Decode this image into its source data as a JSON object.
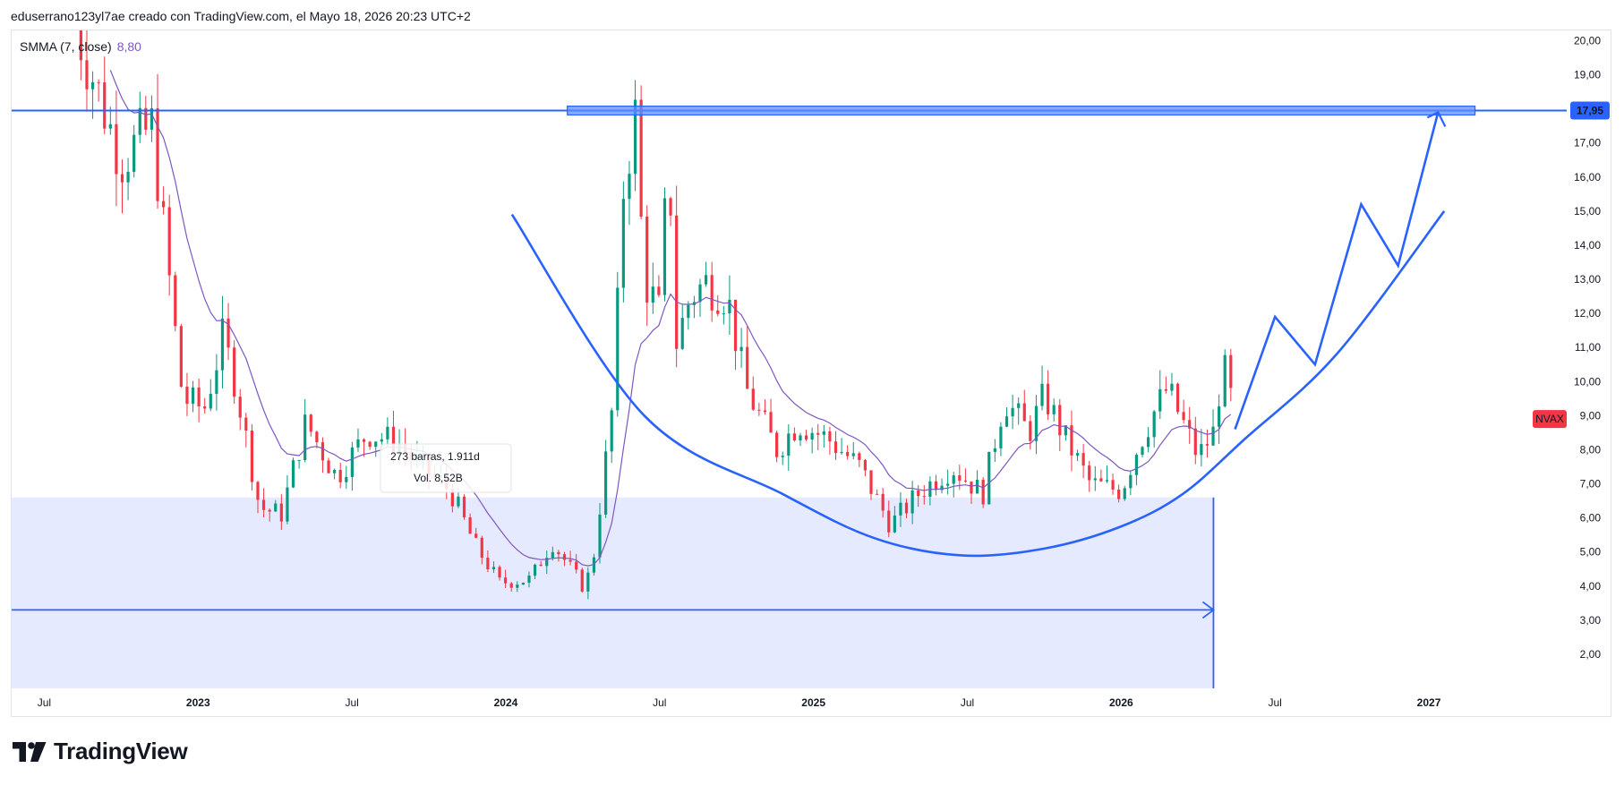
{
  "header": {
    "caption": "eduserrano123yl7ae creado con TradingView.com, el Mayo 18, 2026 20:23 UTC+2"
  },
  "indicator": {
    "name": "SMMA (7, close)",
    "value": "8,80"
  },
  "branding": {
    "logo_text": "TradingView"
  },
  "chart_data": {
    "type": "candlestick",
    "symbol": "NVAX",
    "price_axis": {
      "ticks": [
        "2,00",
        "3,00",
        "4,00",
        "5,00",
        "6,00",
        "7,00",
        "8,00",
        "9,00",
        "10,00",
        "11,00",
        "12,00",
        "13,00",
        "14,00",
        "15,00",
        "16,00",
        "17,00",
        "19,00",
        "20,00"
      ],
      "range": [
        1.0,
        20.3
      ],
      "current_price_label": "17,95",
      "current_price_color": "#2962ff"
    },
    "time_axis": {
      "labels": [
        {
          "t": 2022.5,
          "text": "Jul",
          "bold": false
        },
        {
          "t": 2023.0,
          "text": "2023",
          "bold": true
        },
        {
          "t": 2023.5,
          "text": "Jul",
          "bold": false
        },
        {
          "t": 2024.0,
          "text": "2024",
          "bold": true
        },
        {
          "t": 2024.5,
          "text": "Jul",
          "bold": false
        },
        {
          "t": 2025.0,
          "text": "2025",
          "bold": true
        },
        {
          "t": 2025.5,
          "text": "Jul",
          "bold": false
        },
        {
          "t": 2026.0,
          "text": "2026",
          "bold": true
        },
        {
          "t": 2026.5,
          "text": "Jul",
          "bold": false
        },
        {
          "t": 2027.0,
          "text": "2027",
          "bold": true
        }
      ],
      "range": [
        2022.394,
        2027.448
      ]
    },
    "series": [
      {
        "name": "NVAX",
        "color_up": "#089981",
        "color_down": "#f23645",
        "anchors": [
          [
            2022.6,
            20.5
          ],
          [
            2022.75,
            16.5
          ],
          [
            2022.85,
            17.5
          ],
          [
            2022.95,
            9.5
          ],
          [
            2023.02,
            9.2
          ],
          [
            2023.08,
            11.3
          ],
          [
            2023.12,
            10.0
          ],
          [
            2023.2,
            6.3
          ],
          [
            2023.27,
            6.1
          ],
          [
            2023.35,
            8.8
          ],
          [
            2023.45,
            7.2
          ],
          [
            2023.55,
            8.5
          ],
          [
            2023.65,
            8.2
          ],
          [
            2023.72,
            7.5
          ],
          [
            2023.82,
            6.8
          ],
          [
            2023.9,
            5.2
          ],
          [
            2023.98,
            4.1
          ],
          [
            2024.08,
            4.2
          ],
          [
            2024.15,
            5.3
          ],
          [
            2024.25,
            4.0
          ],
          [
            2024.28,
            4.5
          ],
          [
            2024.35,
            9.5
          ],
          [
            2024.38,
            15.5
          ],
          [
            2024.42,
            17.9
          ],
          [
            2024.45,
            13.0
          ],
          [
            2024.5,
            12.0
          ],
          [
            2024.53,
            17.0
          ],
          [
            2024.55,
            11.0
          ],
          [
            2024.6,
            12.5
          ],
          [
            2024.65,
            12.9
          ],
          [
            2024.72,
            12.5
          ],
          [
            2024.78,
            9.8
          ],
          [
            2024.88,
            8.0
          ],
          [
            2024.95,
            8.8
          ],
          [
            2025.05,
            8.3
          ],
          [
            2025.15,
            7.5
          ],
          [
            2025.25,
            5.8
          ],
          [
            2025.35,
            6.8
          ],
          [
            2025.45,
            7.5
          ],
          [
            2025.55,
            6.7
          ],
          [
            2025.62,
            9.5
          ],
          [
            2025.7,
            8.5
          ],
          [
            2025.75,
            9.6
          ],
          [
            2025.82,
            8.3
          ],
          [
            2025.9,
            7.0
          ],
          [
            2026.0,
            6.8
          ],
          [
            2026.05,
            8.0
          ],
          [
            2026.1,
            9.0
          ],
          [
            2026.15,
            9.8
          ],
          [
            2026.2,
            8.8
          ],
          [
            2026.25,
            7.8
          ],
          [
            2026.3,
            8.5
          ],
          [
            2026.33,
            10.5
          ],
          [
            2026.37,
            9.0
          ]
        ],
        "note": "candle closes approximated from the chart; daily/weekly bars interpolated between these anchors"
      },
      {
        "name": "SMMA (7, close)",
        "color": "#7e57c2"
      }
    ],
    "info_box": {
      "text1": "273 barras, 1.911d",
      "text2": "Vol. 8,52B"
    },
    "drawings": {
      "horizontal_line": {
        "price": 17.95,
        "color": "#2962ff"
      },
      "resistance_zone": {
        "t_start": 2024.2,
        "t_end": 2027.15,
        "price_low": 17.82,
        "price_high": 18.08
      },
      "support_zone": {
        "t_start": 2022.394,
        "t_end": 2026.3,
        "price_low": 1.0,
        "price_high": 6.6
      },
      "date_range_arrow": {
        "t_start": 2022.394,
        "t_end": 2026.3,
        "price": 3.3
      },
      "cup_curve": [
        [
          2024.02,
          14.9
        ],
        [
          2024.45,
          9.0
        ],
        [
          2024.9,
          6.7
        ],
        [
          2025.2,
          5.4
        ],
        [
          2025.48,
          4.9
        ],
        [
          2025.75,
          5.1
        ],
        [
          2026.0,
          5.75
        ],
        [
          2026.2,
          6.7
        ],
        [
          2026.4,
          8.3
        ],
        [
          2026.7,
          10.8
        ],
        [
          2027.05,
          15.0
        ]
      ],
      "projection_path": [
        [
          2026.37,
          8.6
        ],
        [
          2026.5,
          11.9
        ],
        [
          2026.63,
          10.5
        ],
        [
          2026.78,
          15.2
        ],
        [
          2026.9,
          13.4
        ],
        [
          2027.03,
          17.9
        ]
      ]
    }
  },
  "colors": {
    "accent": "#2962ff",
    "up": "#089981",
    "down": "#f23645",
    "smma": "#7e57c2",
    "ticker_badge": "#f23645",
    "support_fill": "#e6eaff"
  }
}
